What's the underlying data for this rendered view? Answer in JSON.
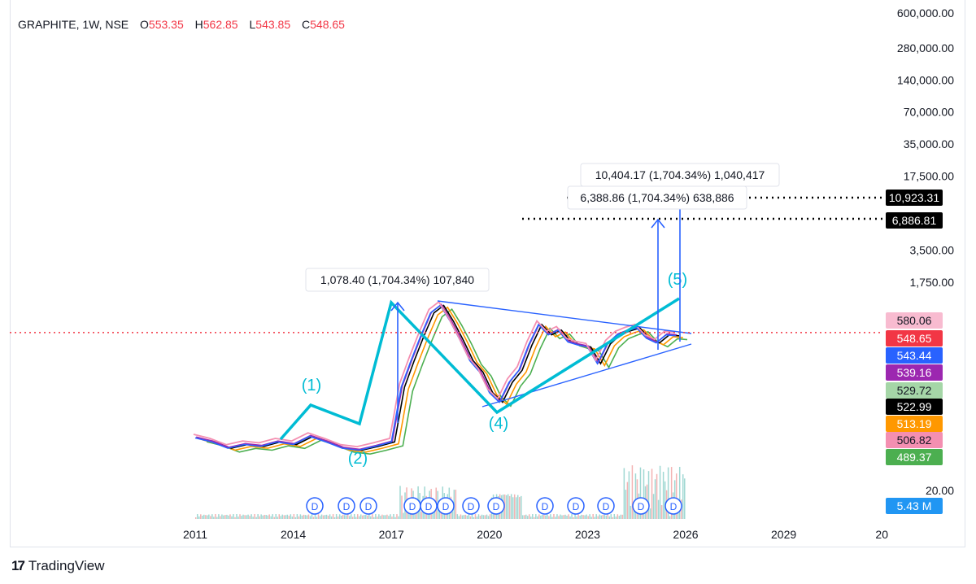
{
  "header": {
    "symbol": "GRAPHITE, 1W, NSE",
    "open_label": "O",
    "open_value": "553.35",
    "high_label": "H",
    "high_value": "562.85",
    "low_label": "L",
    "low_value": "543.85",
    "close_label": "C",
    "close_value": "548.65"
  },
  "branding": {
    "logo_text": "TradingView"
  },
  "colors": {
    "wave_line": "#00bcd4",
    "measure_arrow": "#2962ff",
    "price_line": "#f23645",
    "pink_series": "#f48fb1",
    "dividend": "#2962ff"
  },
  "chart_data": {
    "type": "line",
    "scale": "log",
    "symbol": "GRAPHITE",
    "interval": "1W",
    "exchange": "NSE",
    "y_ticks": [
      "600,000.00",
      "280,000.00",
      "140,000.00",
      "70,000.00",
      "35,000.00",
      "17,500.00",
      "3,500.00",
      "1,750.00",
      "20.00"
    ],
    "x_ticks": [
      "2011",
      "2014",
      "2017",
      "2020",
      "2023",
      "2026",
      "2029",
      "20"
    ],
    "price_labels": [
      {
        "text": "10,923.31",
        "color": "#000000"
      },
      {
        "text": "6,886.81",
        "color": "#000000"
      },
      {
        "text": "580.06",
        "color": "#f8bbd0"
      },
      {
        "text": "548.65",
        "color": "#f23645"
      },
      {
        "text": "543.44",
        "color": "#2962ff"
      },
      {
        "text": "539.16",
        "color": "#9c27b0"
      },
      {
        "text": "529.72",
        "color": "#a5d6a7"
      },
      {
        "text": "522.99",
        "color": "#000000"
      },
      {
        "text": "513.19",
        "color": "#ff9800"
      },
      {
        "text": "506.82",
        "color": "#f48fb1"
      },
      {
        "text": "489.37",
        "color": "#4caf50"
      },
      {
        "text": "5.43 M",
        "color": "#2196f3"
      }
    ],
    "current_price": 548.65,
    "wave_labels": [
      "(1)",
      "(2)",
      "(4)",
      "(5)"
    ],
    "measurements": [
      "1,078.40 (1,704.34%) 107,840",
      "10,404.17 (1,704.34%) 1,040,417",
      "6,388.86 (1,704.34%) 638,886"
    ],
    "dividend_marker": "D",
    "dividend_count": 14,
    "price_series": [
      [
        2011.0,
        60
      ],
      [
        2011.5,
        55
      ],
      [
        2012.0,
        48
      ],
      [
        2012.5,
        52
      ],
      [
        2013.0,
        50
      ],
      [
        2013.5,
        55
      ],
      [
        2014.0,
        52
      ],
      [
        2014.5,
        62
      ],
      [
        2015.0,
        55
      ],
      [
        2015.5,
        48
      ],
      [
        2016.0,
        46
      ],
      [
        2016.5,
        50
      ],
      [
        2017.0,
        55
      ],
      [
        2017.3,
        180
      ],
      [
        2017.6,
        320
      ],
      [
        2017.9,
        550
      ],
      [
        2018.2,
        900
      ],
      [
        2018.5,
        1060
      ],
      [
        2018.8,
        750
      ],
      [
        2019.1,
        500
      ],
      [
        2019.4,
        320
      ],
      [
        2019.7,
        250
      ],
      [
        2020.0,
        160
      ],
      [
        2020.3,
        130
      ],
      [
        2020.6,
        200
      ],
      [
        2020.9,
        260
      ],
      [
        2021.2,
        450
      ],
      [
        2021.5,
        700
      ],
      [
        2021.8,
        560
      ],
      [
        2022.1,
        620
      ],
      [
        2022.4,
        480
      ],
      [
        2022.7,
        450
      ],
      [
        2023.0,
        430
      ],
      [
        2023.3,
        300
      ],
      [
        2023.6,
        460
      ],
      [
        2023.9,
        560
      ],
      [
        2024.2,
        610
      ],
      [
        2024.5,
        650
      ],
      [
        2024.8,
        520
      ],
      [
        2025.1,
        470
      ],
      [
        2025.4,
        560
      ],
      [
        2025.7,
        548.65
      ]
    ]
  }
}
